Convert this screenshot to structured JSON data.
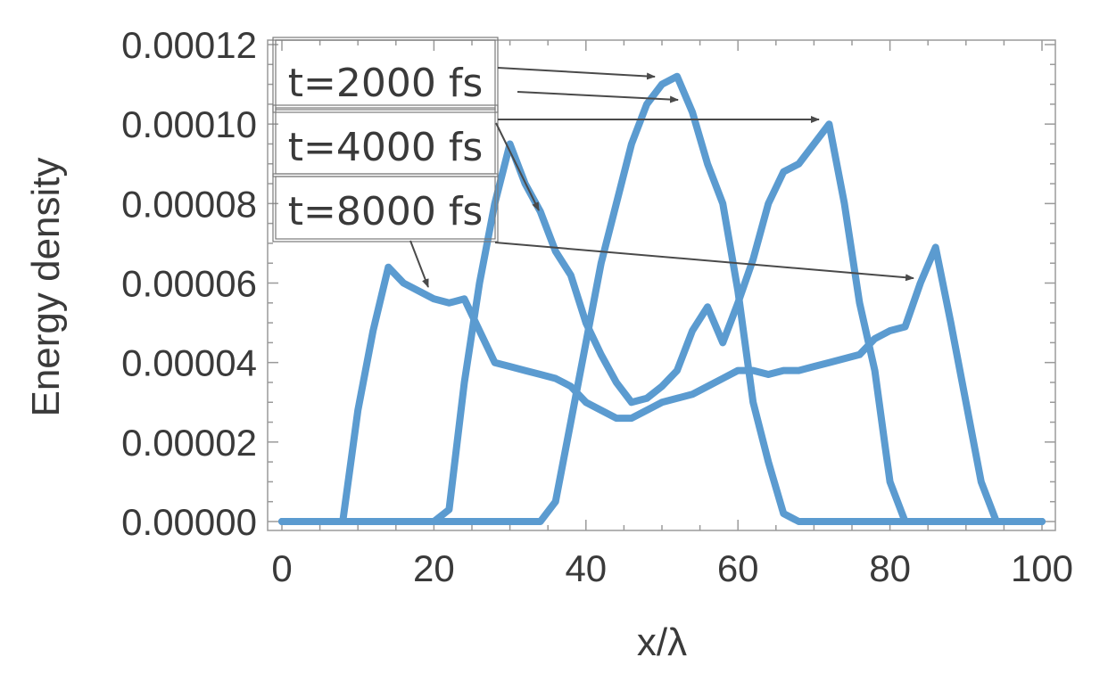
{
  "chart_data": {
    "type": "line",
    "xlabel": "x/λ",
    "ylabel": "Energy density",
    "xlim": [
      0,
      100
    ],
    "ylim": [
      0,
      0.00012
    ],
    "xticks": [
      0,
      20,
      40,
      60,
      80,
      100
    ],
    "xtick_labels": [
      "0",
      "20",
      "40",
      "60",
      "80",
      "100"
    ],
    "yticks": [
      0,
      2e-05,
      4e-05,
      6e-05,
      8e-05,
      0.0001,
      0.00012
    ],
    "ytick_labels": [
      "0.00000",
      "0.00002",
      "0.00004",
      "0.00006",
      "0.00008",
      "0.00010",
      "0.00012"
    ],
    "grid": false,
    "color": "#5b9bd0",
    "series": [
      {
        "x": [
          0,
          8,
          10,
          12,
          14,
          16,
          18,
          20,
          22,
          24,
          26,
          28,
          30,
          32,
          34,
          36,
          38,
          40,
          42,
          44,
          46,
          48,
          50,
          52,
          54,
          56,
          58,
          60,
          62,
          64,
          66,
          68,
          70,
          72,
          74,
          76,
          78,
          80,
          82,
          84,
          86,
          88,
          90,
          92,
          94,
          96,
          98,
          100
        ],
        "y": [
          0,
          0,
          2.8e-05,
          4.8e-05,
          6.4e-05,
          6e-05,
          5.8e-05,
          5.6e-05,
          5.5e-05,
          5.6e-05,
          4.8e-05,
          4e-05,
          3.9e-05,
          3.8e-05,
          3.7e-05,
          3.6e-05,
          3.4e-05,
          3e-05,
          2.8e-05,
          2.6e-05,
          2.6e-05,
          2.8e-05,
          3e-05,
          3.1e-05,
          3.2e-05,
          3.4e-05,
          3.6e-05,
          3.8e-05,
          3.8e-05,
          3.7e-05,
          3.8e-05,
          3.8e-05,
          3.9e-05,
          4e-05,
          4.1e-05,
          4.2e-05,
          4.6e-05,
          4.8e-05,
          4.9e-05,
          6e-05,
          6.9e-05,
          5e-05,
          3e-05,
          1e-05,
          0,
          0,
          0,
          0
        ]
      },
      {
        "x": [
          0,
          20,
          22,
          24,
          26,
          28,
          30,
          32,
          34,
          36,
          38,
          40,
          42,
          44,
          46,
          48,
          50,
          52,
          54,
          56,
          58,
          60,
          62,
          64,
          66,
          68,
          70,
          72,
          74,
          76,
          78,
          80,
          82,
          84,
          86,
          88,
          90,
          92,
          94,
          96,
          98,
          100
        ],
        "y": [
          0,
          0,
          3e-06,
          3.5e-05,
          6e-05,
          8e-05,
          9.5e-05,
          8.5e-05,
          7.8e-05,
          6.8e-05,
          6.2e-05,
          5e-05,
          4.2e-05,
          3.5e-05,
          3e-05,
          3.1e-05,
          3.4e-05,
          3.8e-05,
          4.8e-05,
          5.4e-05,
          4.5e-05,
          5.5e-05,
          6.6e-05,
          8e-05,
          8.8e-05,
          9e-05,
          9.5e-05,
          0.0001,
          8e-05,
          5.5e-05,
          3.8e-05,
          1e-05,
          0,
          0,
          0,
          0,
          0,
          0,
          0,
          0,
          0,
          0
        ]
      },
      {
        "x": [
          0,
          34,
          36,
          38,
          40,
          42,
          44,
          46,
          48,
          50,
          52,
          54,
          56,
          58,
          60,
          62,
          64,
          66,
          68,
          70,
          72,
          74,
          76,
          78,
          80,
          82,
          84,
          86,
          88,
          90,
          92,
          94,
          96,
          98,
          100
        ],
        "y": [
          0,
          0,
          5e-06,
          2.5e-05,
          4.5e-05,
          6.5e-05,
          8e-05,
          9.5e-05,
          0.000105,
          0.00011,
          0.000112,
          0.000103,
          9e-05,
          8e-05,
          5.8e-05,
          3e-05,
          1.5e-05,
          2e-06,
          0,
          0,
          0,
          0,
          0,
          0,
          0,
          0,
          0,
          0,
          0,
          0,
          0,
          0,
          0,
          0,
          0
        ]
      }
    ],
    "annotations": [
      {
        "text": "t=2000 fs"
      },
      {
        "text": "t=4000 fs"
      },
      {
        "text": "t=8000 fs"
      }
    ]
  }
}
